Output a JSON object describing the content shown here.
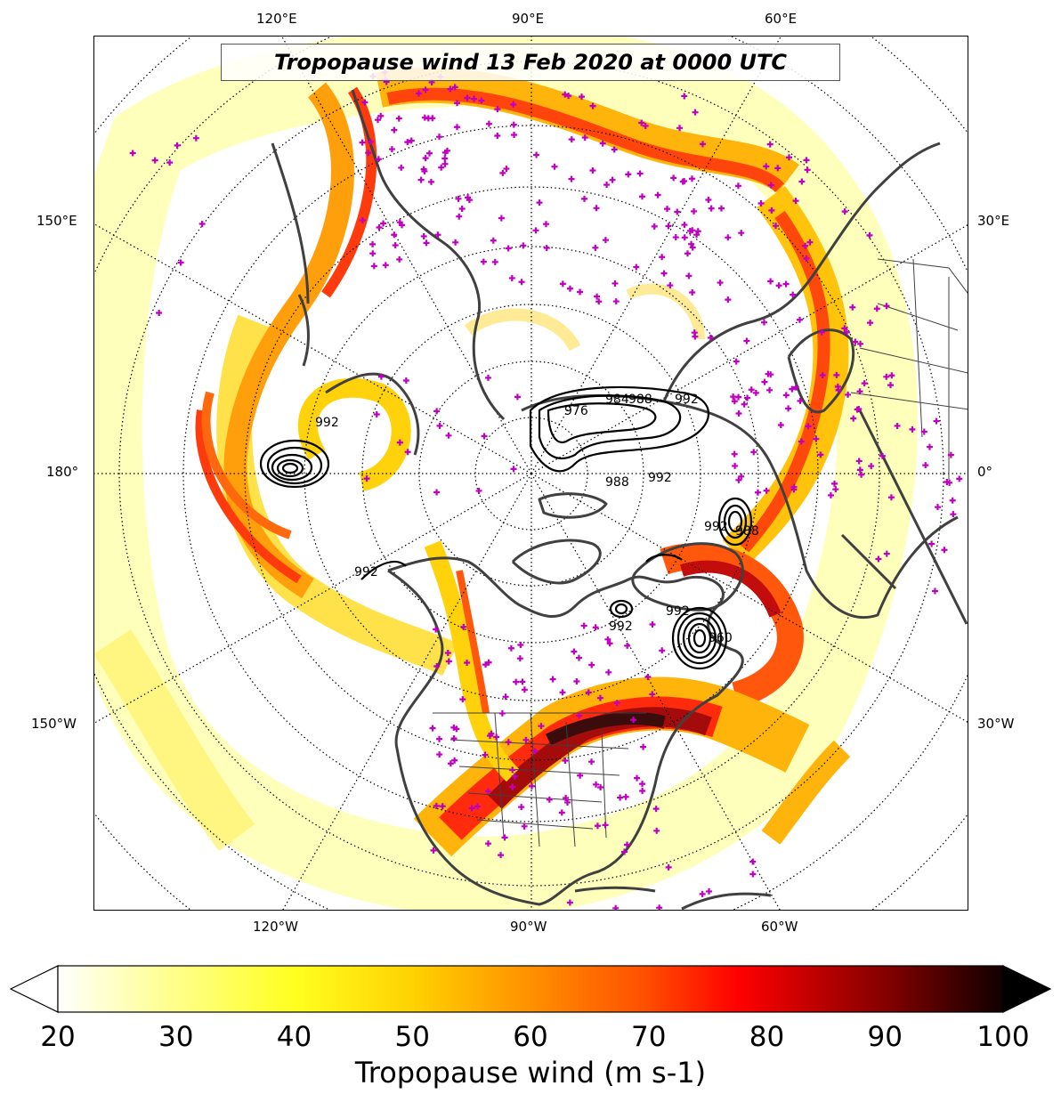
{
  "title": "Tropopause wind 13 Feb 2020 at 0000 UTC",
  "longitude_labels": {
    "top": [
      "120°E",
      "90°E",
      "60°E"
    ],
    "left": [
      "150°E",
      "180°",
      "150°W"
    ],
    "right": [
      "30°E",
      "0°",
      "30°W"
    ],
    "bottom": [
      "120°W",
      "90°W",
      "60°W"
    ]
  },
  "colorbar": {
    "label": "Tropopause wind (m s-1)",
    "ticks": [
      "20",
      "30",
      "40",
      "50",
      "60",
      "70",
      "80",
      "90",
      "100"
    ],
    "min": 20,
    "max": 100,
    "extend": "both",
    "colormap": [
      "#ffffff",
      "#ffffa0",
      "#ffff20",
      "#ffd000",
      "#ff9000",
      "#ff5000",
      "#ff0000",
      "#c00000",
      "#800000",
      "#400000",
      "#000000"
    ]
  },
  "pressure_contour_labels": [
    "992",
    "976",
    "984",
    "988",
    "992",
    "988",
    "992",
    "992",
    "992",
    "992",
    "988",
    "960",
    "992"
  ],
  "colors": {
    "coastline": "#404040",
    "graticule": "#000000",
    "station_marker": "#c000c0",
    "contour": "#000000"
  }
}
